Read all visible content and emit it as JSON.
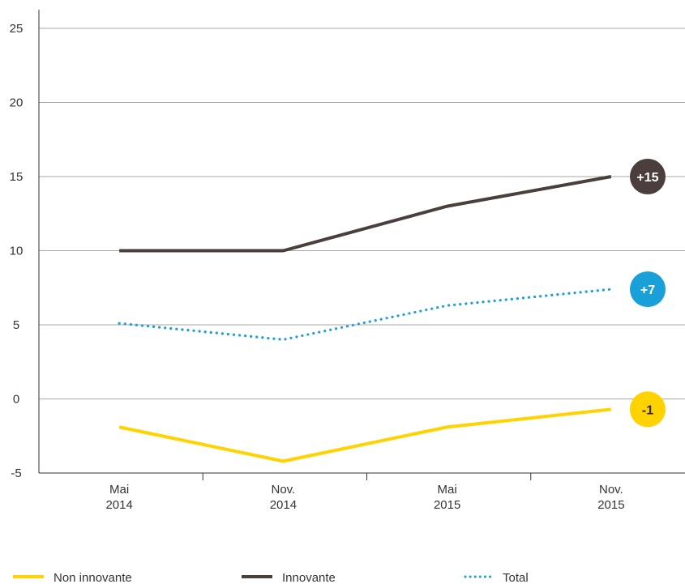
{
  "chart_data": {
    "type": "line",
    "categories": [
      [
        "Mai",
        "2014"
      ],
      [
        "Nov.",
        "2014"
      ],
      [
        "Mai",
        "2015"
      ],
      [
        "Nov.",
        "2015"
      ]
    ],
    "ylim": [
      -5,
      25
    ],
    "yticks": [
      "-5",
      "0",
      "5",
      "10",
      "15",
      "20",
      "25"
    ],
    "grid": true,
    "legend_position": "bottom",
    "series": [
      {
        "name": "Non innovante",
        "values": [
          -1.9,
          -4.2,
          -1.9,
          -0.7
        ],
        "color": "#ffd200",
        "style": "solid",
        "badge": "-1",
        "badge_value": -0.7,
        "badge_text_color": "#2e2e38"
      },
      {
        "name": "Innovante",
        "values": [
          10,
          10,
          13,
          15
        ],
        "color": "#4a3f3c",
        "style": "solid",
        "badge": "+15",
        "badge_value": 15,
        "badge_text_color": "#ffffff"
      },
      {
        "name": "Total",
        "values": [
          5.1,
          4,
          6.3,
          7.4
        ],
        "color": "#1aa0d8",
        "style": "dotted",
        "badge": "+7",
        "badge_value": 7.4,
        "badge_text_color": "#ffffff"
      }
    ]
  }
}
